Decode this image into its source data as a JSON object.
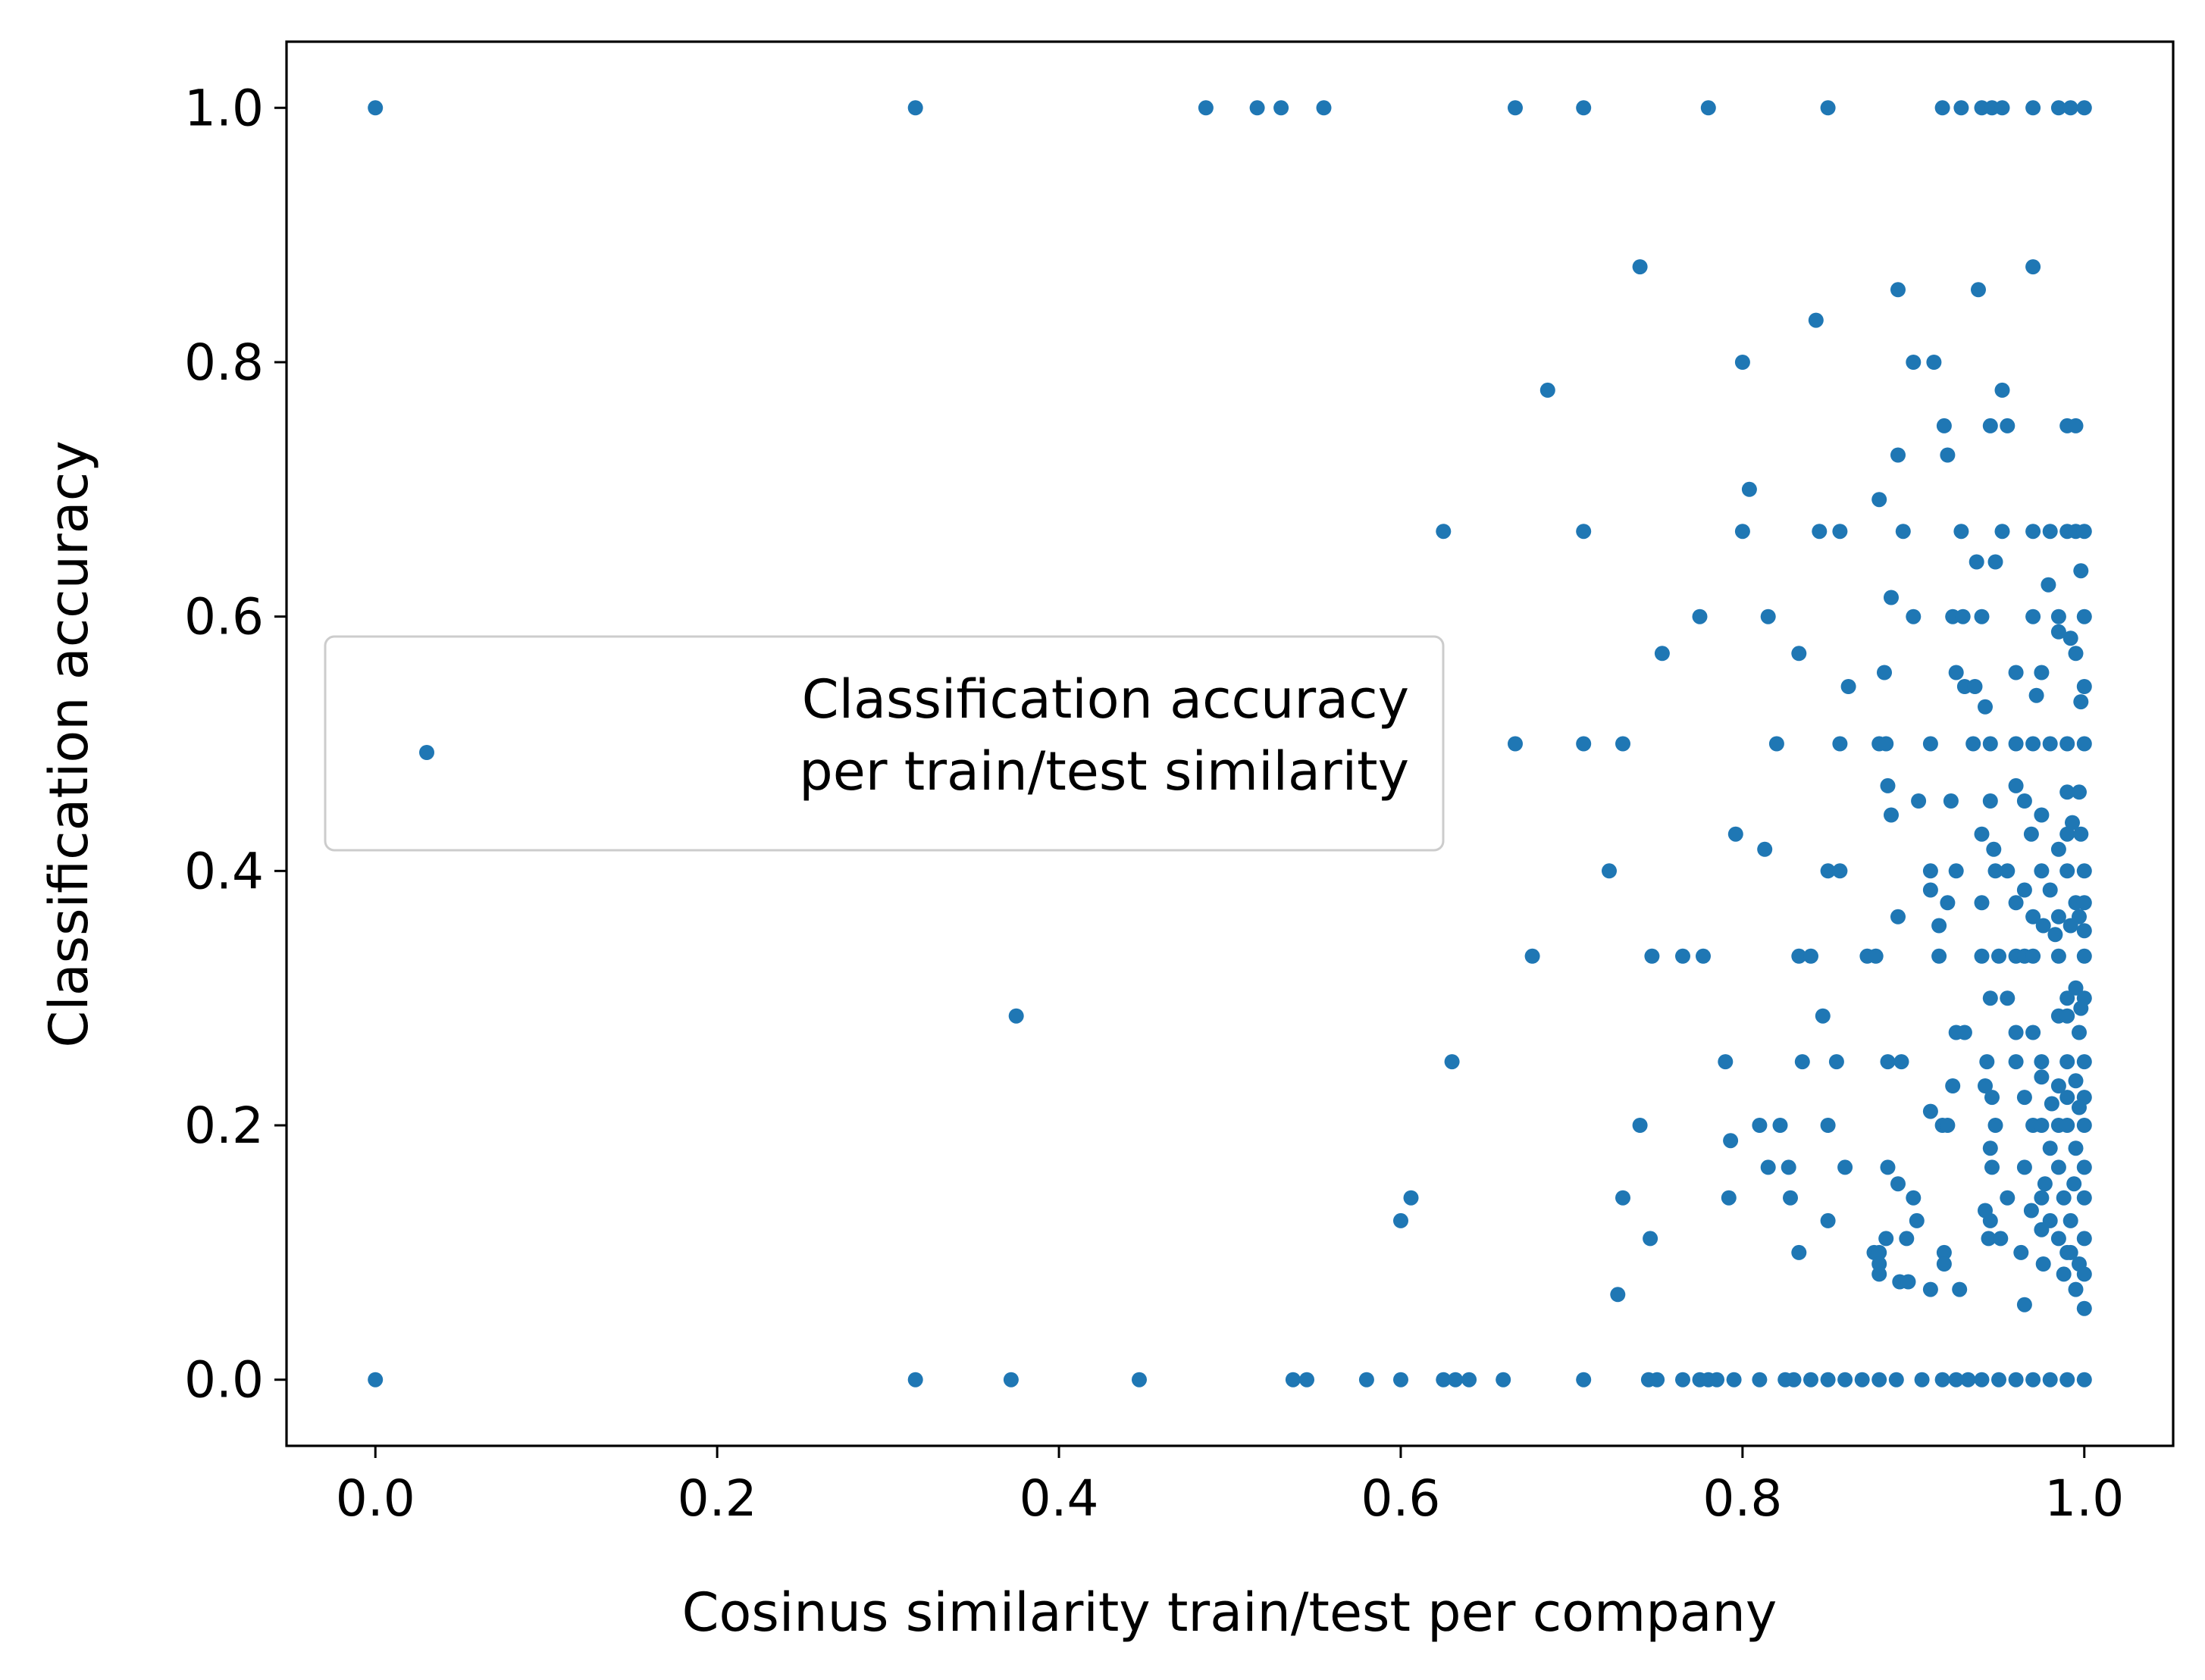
{
  "chart_data": {
    "type": "scatter",
    "xlabel": "Cosinus similarity train/test per company",
    "ylabel": "Classification accuracy",
    "xlim": [
      -0.052,
      1.052
    ],
    "ylim": [
      -0.052,
      1.052
    ],
    "xticks": [
      "0.0",
      "0.2",
      "0.4",
      "0.6",
      "0.8",
      "1.0"
    ],
    "yticks": [
      "0.0",
      "0.2",
      "0.4",
      "0.6",
      "0.8",
      "1.0"
    ],
    "grid": false,
    "legend_position": "center-left",
    "color": "#1f77b4",
    "series": [
      {
        "name": "Classification accuracy\nper train/test similarity",
        "points": [
          [
            0.0,
            1.0
          ],
          [
            0.316,
            1.0
          ],
          [
            0.486,
            1.0
          ],
          [
            0.516,
            1.0
          ],
          [
            0.53,
            1.0
          ],
          [
            0.555,
            1.0
          ],
          [
            0.667,
            1.0
          ],
          [
            0.707,
            1.0
          ],
          [
            0.78,
            1.0
          ],
          [
            0.85,
            1.0
          ],
          [
            0.917,
            1.0
          ],
          [
            0.928,
            1.0
          ],
          [
            0.94,
            1.0
          ],
          [
            0.946,
            1.0
          ],
          [
            0.952,
            1.0
          ],
          [
            0.97,
            1.0
          ],
          [
            0.985,
            1.0
          ],
          [
            0.992,
            1.0
          ],
          [
            1.0,
            1.0
          ],
          [
            0.74,
            0.875
          ],
          [
            0.97,
            0.875
          ],
          [
            0.891,
            0.857
          ],
          [
            0.938,
            0.857
          ],
          [
            0.843,
            0.833
          ],
          [
            0.8,
            0.8
          ],
          [
            0.9,
            0.8
          ],
          [
            0.912,
            0.8
          ],
          [
            0.686,
            0.778
          ],
          [
            0.952,
            0.778
          ],
          [
            0.918,
            0.75
          ],
          [
            0.945,
            0.75
          ],
          [
            0.955,
            0.75
          ],
          [
            0.99,
            0.75
          ],
          [
            0.995,
            0.75
          ],
          [
            0.891,
            0.727
          ],
          [
            0.92,
            0.727
          ],
          [
            0.804,
            0.7
          ],
          [
            0.88,
            0.692
          ],
          [
            0.625,
            0.667
          ],
          [
            0.707,
            0.667
          ],
          [
            0.8,
            0.667
          ],
          [
            0.845,
            0.667
          ],
          [
            0.857,
            0.667
          ],
          [
            0.894,
            0.667
          ],
          [
            0.928,
            0.667
          ],
          [
            0.952,
            0.667
          ],
          [
            0.97,
            0.667
          ],
          [
            0.98,
            0.667
          ],
          [
            0.99,
            0.667
          ],
          [
            0.995,
            0.667
          ],
          [
            1.0,
            0.667
          ],
          [
            0.937,
            0.643
          ],
          [
            0.948,
            0.643
          ],
          [
            0.998,
            0.636
          ],
          [
            0.887,
            0.615
          ],
          [
            0.979,
            0.625
          ],
          [
            0.775,
            0.6
          ],
          [
            0.815,
            0.6
          ],
          [
            0.9,
            0.6
          ],
          [
            0.923,
            0.6
          ],
          [
            0.929,
            0.6
          ],
          [
            0.94,
            0.6
          ],
          [
            0.97,
            0.6
          ],
          [
            0.985,
            0.6
          ],
          [
            1.0,
            0.6
          ],
          [
            0.985,
            0.588
          ],
          [
            0.992,
            0.583
          ],
          [
            0.753,
            0.571
          ],
          [
            0.833,
            0.571
          ],
          [
            0.995,
            0.571
          ],
          [
            0.925,
            0.556
          ],
          [
            0.883,
            0.556
          ],
          [
            0.96,
            0.556
          ],
          [
            0.975,
            0.556
          ],
          [
            0.862,
            0.545
          ],
          [
            0.93,
            0.545
          ],
          [
            0.936,
            0.545
          ],
          [
            1.0,
            0.545
          ],
          [
            0.972,
            0.538
          ],
          [
            0.998,
            0.533
          ],
          [
            0.942,
            0.529
          ],
          [
            0.667,
            0.5
          ],
          [
            0.707,
            0.5
          ],
          [
            0.73,
            0.5
          ],
          [
            0.82,
            0.5
          ],
          [
            0.857,
            0.5
          ],
          [
            0.88,
            0.5
          ],
          [
            0.884,
            0.5
          ],
          [
            0.91,
            0.5
          ],
          [
            0.935,
            0.5
          ],
          [
            0.945,
            0.5
          ],
          [
            0.96,
            0.5
          ],
          [
            0.97,
            0.5
          ],
          [
            0.98,
            0.5
          ],
          [
            0.99,
            0.5
          ],
          [
            1.0,
            0.5
          ],
          [
            0.885,
            0.467
          ],
          [
            0.96,
            0.467
          ],
          [
            0.99,
            0.462
          ],
          [
            0.997,
            0.462
          ],
          [
            0.903,
            0.455
          ],
          [
            0.922,
            0.455
          ],
          [
            0.945,
            0.455
          ],
          [
            0.965,
            0.455
          ],
          [
            0.887,
            0.444
          ],
          [
            0.975,
            0.444
          ],
          [
            0.993,
            0.438
          ],
          [
            0.796,
            0.429
          ],
          [
            0.94,
            0.429
          ],
          [
            0.969,
            0.429
          ],
          [
            0.99,
            0.429
          ],
          [
            0.998,
            0.429
          ],
          [
            0.947,
            0.417
          ],
          [
            0.813,
            0.417
          ],
          [
            0.985,
            0.417
          ],
          [
            0.722,
            0.4
          ],
          [
            0.85,
            0.4
          ],
          [
            0.857,
            0.4
          ],
          [
            0.91,
            0.4
          ],
          [
            0.925,
            0.4
          ],
          [
            0.948,
            0.4
          ],
          [
            0.955,
            0.4
          ],
          [
            0.975,
            0.4
          ],
          [
            0.99,
            0.4
          ],
          [
            1.0,
            0.4
          ],
          [
            0.91,
            0.385
          ],
          [
            0.965,
            0.385
          ],
          [
            0.98,
            0.385
          ],
          [
            0.92,
            0.375
          ],
          [
            0.94,
            0.375
          ],
          [
            0.96,
            0.375
          ],
          [
            0.995,
            0.375
          ],
          [
            1.0,
            0.375
          ],
          [
            0.891,
            0.364
          ],
          [
            0.97,
            0.364
          ],
          [
            0.985,
            0.364
          ],
          [
            0.997,
            0.364
          ],
          [
            0.915,
            0.357
          ],
          [
            0.976,
            0.357
          ],
          [
            0.992,
            0.357
          ],
          [
            1.0,
            0.353
          ],
          [
            0.983,
            0.35
          ],
          [
            0.677,
            0.333
          ],
          [
            0.747,
            0.333
          ],
          [
            0.765,
            0.333
          ],
          [
            0.777,
            0.333
          ],
          [
            0.833,
            0.333
          ],
          [
            0.84,
            0.333
          ],
          [
            0.873,
            0.333
          ],
          [
            0.878,
            0.333
          ],
          [
            0.915,
            0.333
          ],
          [
            0.94,
            0.333
          ],
          [
            0.95,
            0.333
          ],
          [
            0.96,
            0.333
          ],
          [
            0.965,
            0.333
          ],
          [
            0.97,
            0.333
          ],
          [
            0.985,
            0.333
          ],
          [
            1.0,
            0.333
          ],
          [
            0.955,
            0.3
          ],
          [
            0.945,
            0.3
          ],
          [
            0.99,
            0.3
          ],
          [
            0.995,
            0.308
          ],
          [
            1.0,
            0.3
          ],
          [
            0.998,
            0.292
          ],
          [
            0.375,
            0.286
          ],
          [
            0.847,
            0.286
          ],
          [
            0.985,
            0.286
          ],
          [
            0.99,
            0.286
          ],
          [
            0.96,
            0.273
          ],
          [
            0.97,
            0.273
          ],
          [
            0.925,
            0.273
          ],
          [
            0.93,
            0.273
          ],
          [
            0.997,
            0.273
          ],
          [
            0.63,
            0.25
          ],
          [
            0.79,
            0.25
          ],
          [
            0.835,
            0.25
          ],
          [
            0.855,
            0.25
          ],
          [
            0.885,
            0.25
          ],
          [
            0.893,
            0.25
          ],
          [
            0.943,
            0.25
          ],
          [
            0.96,
            0.25
          ],
          [
            0.975,
            0.25
          ],
          [
            0.99,
            0.25
          ],
          [
            1.0,
            0.25
          ],
          [
            0.975,
            0.238
          ],
          [
            0.995,
            0.235
          ],
          [
            0.923,
            0.231
          ],
          [
            0.942,
            0.231
          ],
          [
            0.985,
            0.231
          ],
          [
            0.965,
            0.222
          ],
          [
            0.946,
            0.222
          ],
          [
            0.99,
            0.222
          ],
          [
            1.0,
            0.222
          ],
          [
            0.91,
            0.211
          ],
          [
            0.997,
            0.214
          ],
          [
            0.981,
            0.217
          ],
          [
            0.74,
            0.2
          ],
          [
            0.81,
            0.2
          ],
          [
            0.822,
            0.2
          ],
          [
            0.85,
            0.2
          ],
          [
            0.917,
            0.2
          ],
          [
            0.92,
            0.2
          ],
          [
            0.948,
            0.2
          ],
          [
            0.97,
            0.2
          ],
          [
            0.975,
            0.2
          ],
          [
            0.985,
            0.2
          ],
          [
            0.99,
            0.2
          ],
          [
            1.0,
            0.2
          ],
          [
            0.793,
            0.188
          ],
          [
            0.945,
            0.182
          ],
          [
            0.98,
            0.182
          ],
          [
            0.995,
            0.182
          ],
          [
            0.815,
            0.167
          ],
          [
            0.827,
            0.167
          ],
          [
            0.86,
            0.167
          ],
          [
            0.885,
            0.167
          ],
          [
            0.946,
            0.167
          ],
          [
            0.965,
            0.167
          ],
          [
            0.985,
            0.167
          ],
          [
            1.0,
            0.167
          ],
          [
            0.891,
            0.154
          ],
          [
            0.994,
            0.154
          ],
          [
            0.977,
            0.154
          ],
          [
            0.9,
            0.143
          ],
          [
            0.955,
            0.143
          ],
          [
            0.73,
            0.143
          ],
          [
            0.606,
            0.143
          ],
          [
            0.792,
            0.143
          ],
          [
            0.828,
            0.143
          ],
          [
            0.975,
            0.143
          ],
          [
            0.988,
            0.143
          ],
          [
            1.0,
            0.143
          ],
          [
            0.942,
            0.133
          ],
          [
            0.969,
            0.133
          ],
          [
            0.6,
            0.125
          ],
          [
            0.85,
            0.125
          ],
          [
            0.902,
            0.125
          ],
          [
            0.945,
            0.125
          ],
          [
            0.98,
            0.125
          ],
          [
            0.992,
            0.125
          ],
          [
            0.975,
            0.118
          ],
          [
            0.746,
            0.111
          ],
          [
            0.884,
            0.111
          ],
          [
            0.896,
            0.111
          ],
          [
            0.944,
            0.111
          ],
          [
            0.951,
            0.111
          ],
          [
            0.985,
            0.111
          ],
          [
            1.0,
            0.111
          ],
          [
            0.833,
            0.1
          ],
          [
            0.877,
            0.1
          ],
          [
            0.88,
            0.1
          ],
          [
            0.918,
            0.1
          ],
          [
            0.963,
            0.1
          ],
          [
            0.99,
            0.1
          ],
          [
            0.992,
            0.1
          ],
          [
            0.88,
            0.091
          ],
          [
            0.918,
            0.091
          ],
          [
            0.976,
            0.091
          ],
          [
            0.997,
            0.091
          ],
          [
            0.88,
            0.083
          ],
          [
            0.988,
            0.083
          ],
          [
            1.0,
            0.083
          ],
          [
            0.892,
            0.077
          ],
          [
            0.897,
            0.077
          ],
          [
            0.91,
            0.071
          ],
          [
            0.927,
            0.071
          ],
          [
            0.995,
            0.071
          ],
          [
            0.727,
            0.067
          ],
          [
            0.965,
            0.059
          ],
          [
            1.0,
            0.056
          ],
          [
            0.0,
            0.0
          ],
          [
            0.316,
            0.0
          ],
          [
            0.372,
            0.0
          ],
          [
            0.447,
            0.0
          ],
          [
            0.537,
            0.0
          ],
          [
            0.545,
            0.0
          ],
          [
            0.58,
            0.0
          ],
          [
            0.6,
            0.0
          ],
          [
            0.625,
            0.0
          ],
          [
            0.632,
            0.0
          ],
          [
            0.64,
            0.0
          ],
          [
            0.66,
            0.0
          ],
          [
            0.707,
            0.0
          ],
          [
            0.745,
            0.0
          ],
          [
            0.75,
            0.0
          ],
          [
            0.765,
            0.0
          ],
          [
            0.775,
            0.0
          ],
          [
            0.78,
            0.0
          ],
          [
            0.785,
            0.0
          ],
          [
            0.795,
            0.0
          ],
          [
            0.81,
            0.0
          ],
          [
            0.825,
            0.0
          ],
          [
            0.83,
            0.0
          ],
          [
            0.84,
            0.0
          ],
          [
            0.85,
            0.0
          ],
          [
            0.86,
            0.0
          ],
          [
            0.87,
            0.0
          ],
          [
            0.88,
            0.0
          ],
          [
            0.89,
            0.0
          ],
          [
            0.905,
            0.0
          ],
          [
            0.917,
            0.0
          ],
          [
            0.925,
            0.0
          ],
          [
            0.932,
            0.0
          ],
          [
            0.94,
            0.0
          ],
          [
            0.95,
            0.0
          ],
          [
            0.96,
            0.0
          ],
          [
            0.97,
            0.0
          ],
          [
            0.98,
            0.0
          ],
          [
            0.99,
            0.0
          ],
          [
            1.0,
            0.0
          ]
        ]
      }
    ]
  }
}
